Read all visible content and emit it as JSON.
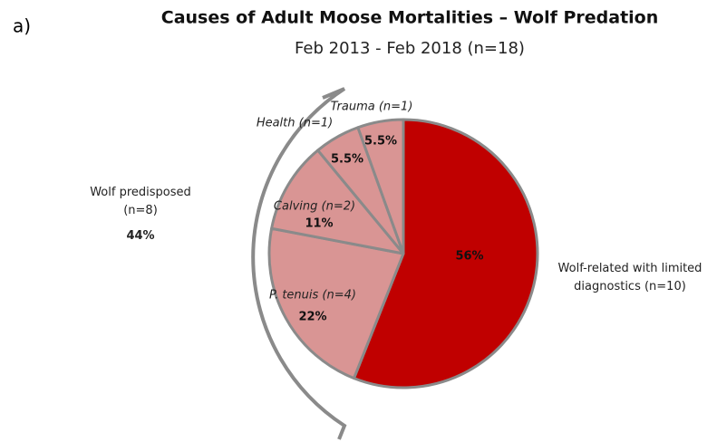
{
  "chart_data": {
    "type": "pie",
    "panel_label": "a)",
    "title": "Causes of Adult Moose Mortalities – Wolf Predation",
    "subtitle": "Feb 2013 - Feb 2018 (n=18)",
    "categories": [
      "Wolf-related with limited diagnostics (n=10)",
      "P. tenuis (n=4)",
      "Calving (n=2)",
      "Health (n=1)",
      "Trauma (n=1)"
    ],
    "values": [
      56,
      22,
      11,
      5.5,
      5.5
    ],
    "value_labels": [
      "56%",
      "22%",
      "11%",
      "5.5%",
      "5.5%"
    ],
    "colors": [
      "#c00000",
      "#d99594",
      "#d99594",
      "#d99594",
      "#d99594"
    ],
    "group_annotation": {
      "label": "Wolf predisposed (n=8)",
      "value": 44,
      "value_label": "44%"
    }
  }
}
